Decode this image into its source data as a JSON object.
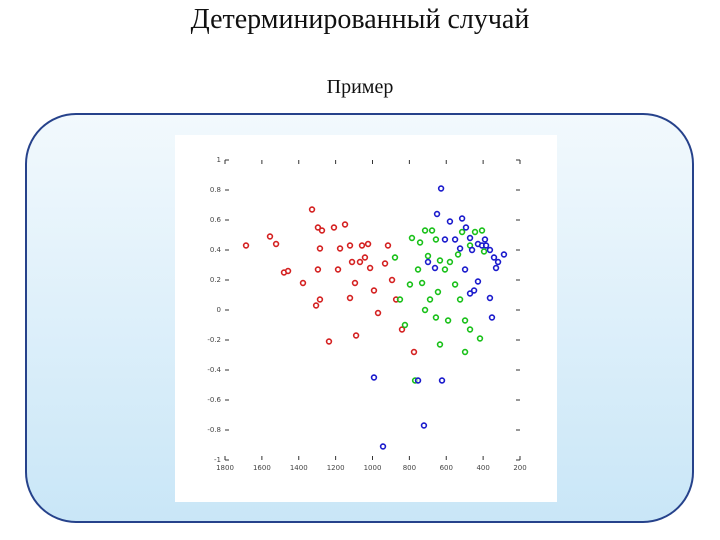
{
  "chart_data": {
    "type": "scatter",
    "title": "Детерминированный случай",
    "subtitle": "Пример",
    "xlim": [
      1800,
      200
    ],
    "xticks": [
      1800,
      1600,
      1400,
      1200,
      1000,
      800,
      600,
      400,
      200
    ],
    "ylim": [
      -1,
      1
    ],
    "yticks": [
      -1,
      -0.8,
      -0.6,
      -0.4,
      -0.2,
      0,
      0.2,
      0.4,
      0.6,
      0.8,
      1
    ],
    "grid": false,
    "series": [
      {
        "color": "#d42020",
        "x": [
          1686,
          1556,
          1523,
          1480,
          1458,
          1377,
          1328,
          1296,
          1274,
          1285,
          1296,
          1306,
          1285,
          1236,
          1209,
          1149,
          1176,
          1187,
          1122,
          1111,
          1095,
          1122,
          1089,
          1057,
          1041,
          1024,
          1013,
          992,
          970,
          932,
          894,
          872,
          840,
          775,
          916,
          1068
        ],
        "values": [
          0.43,
          0.49,
          0.44,
          0.25,
          0.26,
          0.18,
          0.67,
          0.55,
          0.53,
          0.41,
          0.27,
          0.03,
          0.07,
          -0.21,
          0.55,
          0.57,
          0.41,
          0.27,
          0.43,
          0.32,
          0.18,
          0.08,
          -0.17,
          0.43,
          0.35,
          0.44,
          0.28,
          0.13,
          -0.02,
          0.31,
          0.2,
          0.07,
          -0.13,
          -0.28,
          0.43,
          0.32
        ]
      },
      {
        "color": "#18c018",
        "x": [
          878,
          786,
          742,
          715,
          677,
          656,
          634,
          699,
          753,
          797,
          851,
          824,
          769,
          731,
          688,
          645,
          607,
          580,
          552,
          525,
          498,
          471,
          417,
          471,
          444,
          406,
          395,
          634,
          498,
          590,
          656,
          715,
          536,
          514
        ],
        "values": [
          0.35,
          0.48,
          0.45,
          0.53,
          0.53,
          0.47,
          0.33,
          0.36,
          0.27,
          0.17,
          0.07,
          -0.1,
          -0.47,
          0.18,
          0.07,
          0.12,
          0.27,
          0.32,
          0.17,
          0.07,
          -0.07,
          -0.13,
          -0.19,
          0.43,
          0.52,
          0.53,
          0.39,
          -0.23,
          -0.28,
          -0.07,
          -0.05,
          0,
          0.37,
          0.52
        ]
      },
      {
        "color": "#1a1acc",
        "x": [
          628,
          580,
          650,
          552,
          514,
          493,
          471,
          460,
          428,
          406,
          384,
          363,
          341,
          319,
          287,
          330,
          428,
          449,
          471,
          363,
          352,
          699,
          661,
          607,
          525,
          992,
          753,
          721,
          943,
          623,
          498,
          390
        ],
        "values": [
          0.81,
          0.59,
          0.64,
          0.47,
          0.61,
          0.55,
          0.48,
          0.4,
          0.44,
          0.43,
          0.43,
          0.4,
          0.35,
          0.32,
          0.37,
          0.28,
          0.19,
          0.13,
          0.11,
          0.08,
          -0.05,
          0.32,
          0.28,
          0.47,
          0.41,
          -0.45,
          -0.47,
          -0.77,
          -0.91,
          -0.47,
          0.27,
          0.47
        ]
      }
    ]
  }
}
